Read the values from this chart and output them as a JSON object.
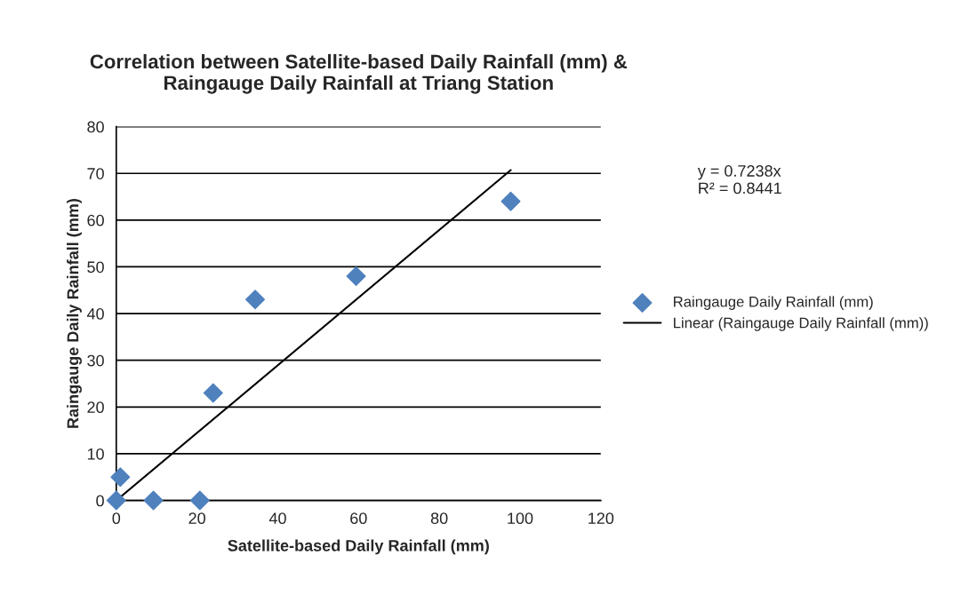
{
  "chart_data": {
    "type": "scatter",
    "title": "Correlation between Satellite-based Daily Rainfall (mm) &\nRaingauge Daily Rainfall at Triang Station",
    "xlabel": "Satellite-based Daily Rainfall (mm)",
    "ylabel": "Raingauge Daily Rainfall (mm)",
    "series": [
      {
        "name": "Raingauge Daily Rainfall (mm)",
        "color": "#4f81bd",
        "marker": "diamond",
        "x": [
          0,
          1,
          9.2,
          20.7,
          24,
          34.4,
          59.4,
          97.7
        ],
        "values": [
          0,
          5,
          0,
          0,
          23,
          43,
          48,
          64
        ]
      },
      {
        "name": "Linear (Raingauge Daily Rainfall (mm))",
        "type": "line",
        "color": "#000000",
        "marker": "none",
        "line_style": "solid",
        "x": [
          0,
          97.7
        ],
        "values": [
          0,
          70.7
        ]
      }
    ],
    "annotations": [
      "y = 0.7238x\nR² = 0.8441"
    ],
    "xlim": [
      0,
      120
    ],
    "xticks": [
      0,
      20,
      40,
      60,
      80,
      100,
      120
    ],
    "ylim": [
      0,
      80
    ],
    "yticks": [
      0,
      10,
      20,
      30,
      40,
      50,
      60,
      70,
      80
    ],
    "grid": "y",
    "legend": "right"
  }
}
